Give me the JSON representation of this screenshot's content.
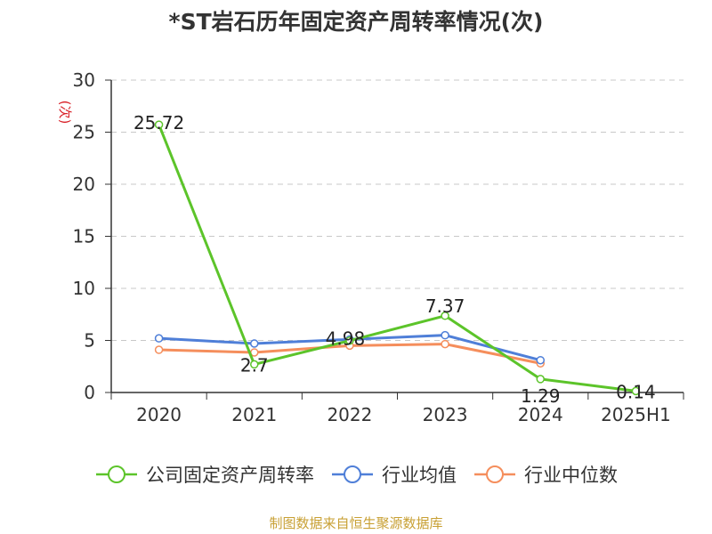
{
  "chart_data": {
    "type": "line",
    "title": "*ST岩石历年固定资产周转率情况(次)",
    "ylabel": "(次)",
    "xlabel": "",
    "categories": [
      "2020",
      "2021",
      "2022",
      "2023",
      "2024",
      "2025H1"
    ],
    "ylim": [
      0,
      30
    ],
    "yticks": [
      "0",
      "5",
      "10",
      "15",
      "20",
      "25",
      "30"
    ],
    "grid": true,
    "legend_position": "bottom",
    "series": [
      {
        "name": "公司固定资产周转率",
        "color": "#5cc42a",
        "values": [
          25.72,
          2.7,
          4.98,
          7.37,
          1.29,
          0.14
        ],
        "labels": [
          "25.72",
          "2.7",
          "4.98",
          "7.37",
          "1.29",
          "0.14"
        ]
      },
      {
        "name": "行业均值",
        "color": "#4f7fd8",
        "values": [
          5.2,
          4.7,
          5.1,
          5.5,
          3.1,
          null
        ]
      },
      {
        "name": "行业中位数",
        "color": "#f58e5c",
        "values": [
          4.1,
          3.85,
          4.5,
          4.65,
          2.8,
          null
        ]
      }
    ]
  },
  "source": "制图数据来自恒生聚源数据库"
}
